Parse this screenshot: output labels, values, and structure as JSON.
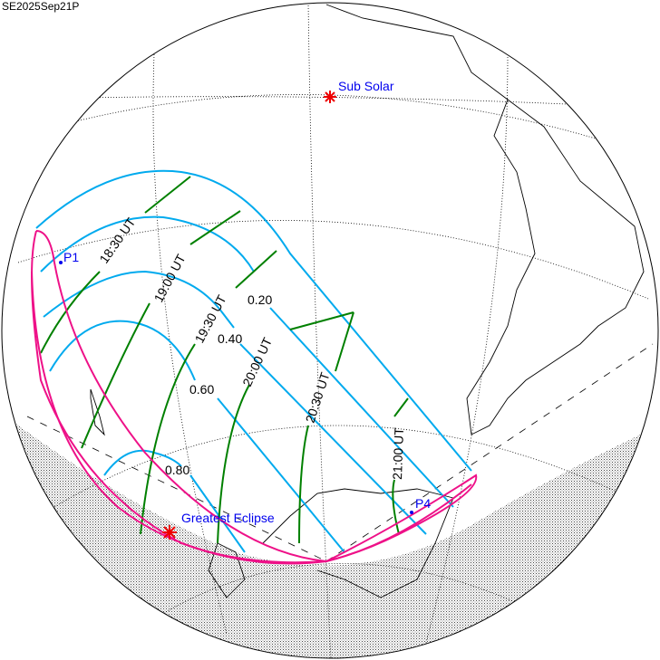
{
  "title": "SE2025Sep21P",
  "labels": {
    "sub_solar": "Sub Solar",
    "greatest_eclipse": "Greatest Eclipse",
    "p1": "P1",
    "p4": "P4"
  },
  "time_labels": [
    "18:30 UT",
    "19:00 UT",
    "19:30 UT",
    "20:00 UT",
    "20:30 UT",
    "21:00 UT"
  ],
  "magnitude_labels": [
    "0.20",
    "0.40",
    "0.60",
    "0.80"
  ],
  "colors": {
    "magnitude_lines": "#00aaee",
    "time_lines": "#008000",
    "limits": "#ee1188",
    "marker": "#ee0000",
    "label_text": "#0000ee"
  }
}
